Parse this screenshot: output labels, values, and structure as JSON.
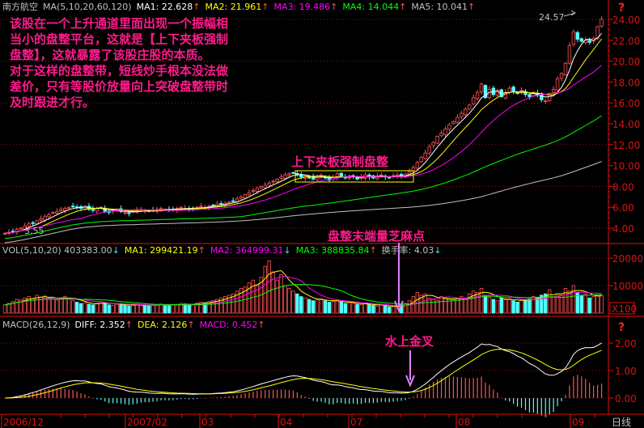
{
  "stock_name": "南方航空",
  "price_header": [
    {
      "label": "MA(5,10,20,60,120)",
      "value": "",
      "color": "#c0c0c0",
      "arrow": ""
    },
    {
      "label": "MA1:",
      "value": "22.628",
      "color": "#ffffff",
      "arrow": "up"
    },
    {
      "label": "MA2:",
      "value": "21.961",
      "color": "#ffff00",
      "arrow": "up"
    },
    {
      "label": "MA3:",
      "value": "19.486",
      "color": "#ff00ff",
      "arrow": "up"
    },
    {
      "label": "MA4:",
      "value": "14.044",
      "color": "#00ff00",
      "arrow": "up"
    },
    {
      "label": "MA5:",
      "value": "10.041",
      "color": "#c0c0c0",
      "arrow": "up"
    }
  ],
  "vol_header": [
    {
      "label": "VOL(5,10,20)",
      "value": "403383.00",
      "color": "#c0c0c0",
      "arrow": "down"
    },
    {
      "label": "MA1:",
      "value": "299421.19",
      "color": "#ffff00",
      "arrow": "up"
    },
    {
      "label": "MA2:",
      "value": "364999.31",
      "color": "#ff00ff",
      "arrow": "down"
    },
    {
      "label": "MA3:",
      "value": "388835.84",
      "color": "#00ff00",
      "arrow": "up"
    },
    {
      "label": "换手率:",
      "value": "4.03",
      "color": "#c0c0c0",
      "arrow": "down"
    }
  ],
  "macd_header": [
    {
      "label": "MACD(26,12,9)",
      "value": "",
      "color": "#c0c0c0",
      "arrow": ""
    },
    {
      "label": "DIFF:",
      "value": "2.352",
      "color": "#ffffff",
      "arrow": "up"
    },
    {
      "label": "DEA:",
      "value": "2.126",
      "color": "#ffff00",
      "arrow": "up"
    },
    {
      "label": "MACD:",
      "value": "0.452",
      "color": "#ff00ff",
      "arrow": "up"
    }
  ],
  "annotation_text": [
    "该股在一个上升通道里面出现一个振幅相",
    "当小的盘整平台，这就是【上下夹板强制",
    "盘整】，这就暴露了该股庄股的本质。",
    "对于这样的盘整带，短线炒手根本没法做",
    "差价，只有等股价放量向上突破盘整带时",
    "及时跟进才行。"
  ],
  "labels": {
    "box": "上下夹板强制盘整",
    "volume_note": "盘整末端量芝麻点",
    "macd_note": "水上金叉",
    "high": "24.57",
    "low": "3.55",
    "vol_unit": "X100",
    "period": "日线",
    "help": "?"
  },
  "colors": {
    "up": "#ff5454",
    "down": "#54ffff",
    "axis": "#e01010",
    "note": "#ff1a8c",
    "box": "#ffff00"
  },
  "chart_data": {
    "type": "candlestick",
    "price_axis": {
      "ticks": [
        "24.00",
        "22.00",
        "20.00",
        "18.00",
        "16.00",
        "14.00",
        "12.00",
        "10.00",
        "8.00",
        "6.00",
        "4.00"
      ],
      "ylim": [
        3.5,
        25
      ]
    },
    "vol_axis": {
      "ticks": [
        "20000",
        "10000",
        "0"
      ]
    },
    "macd_axis": {
      "ticks": [
        "2.00",
        "1.00",
        "0.00"
      ]
    },
    "x_ticks": [
      "2006/12",
      "2007/02",
      "03",
      "04",
      "07",
      "08",
      "09"
    ],
    "ma_periods": [
      5,
      10,
      20,
      60,
      120
    ],
    "close": [
      3.5,
      3.6,
      3.7,
      3.9,
      4.0,
      4.2,
      4.4,
      4.5,
      4.7,
      4.9,
      5.1,
      5.3,
      5.5,
      5.6,
      5.8,
      5.9,
      6.0,
      6.1,
      6.0,
      5.9,
      6.1,
      5.8,
      5.7,
      5.9,
      6.0,
      5.6,
      5.5,
      5.7,
      5.8,
      5.6,
      5.5,
      5.4,
      5.6,
      5.7,
      5.8,
      5.7,
      5.6,
      5.7,
      5.8,
      5.9,
      5.8,
      5.7,
      5.8,
      5.9,
      6.0,
      5.9,
      5.8,
      5.9,
      6.0,
      6.1,
      6.0,
      6.1,
      6.2,
      6.3,
      6.3,
      6.4,
      6.5,
      6.6,
      6.8,
      7.0,
      7.2,
      7.4,
      7.6,
      7.8,
      8.0,
      8.1,
      8.3,
      8.5,
      8.7,
      8.9,
      9.1,
      9.2,
      9.3,
      9.1,
      8.9,
      9.0,
      8.8,
      8.7,
      8.9,
      9.1,
      8.8,
      8.6,
      8.9,
      9.2,
      9.0,
      8.8,
      8.9,
      9.0,
      8.7,
      8.9,
      9.1,
      8.9,
      8.8,
      9.0,
      9.1,
      8.9,
      8.8,
      9.0,
      9.1,
      9.0,
      9.2,
      9.4,
      9.8,
      10.3,
      10.8,
      11.2,
      11.8,
      12.2,
      12.8,
      13.1,
      13.5,
      13.9,
      14.2,
      14.6,
      15.0,
      15.4,
      15.8,
      16.5,
      17.0,
      17.8,
      16.5,
      17.3,
      16.8,
      17.2,
      16.6,
      17.0,
      17.4,
      17.1,
      16.9,
      17.2,
      16.8,
      16.6,
      17.0,
      16.7,
      16.3,
      16.2,
      16.9,
      17.3,
      18.3,
      18.8,
      19.8,
      21.5,
      22.8,
      22.1,
      21.9,
      22.0,
      21.8,
      22.2,
      23.3,
      24.0
    ],
    "volume": [
      3000,
      3500,
      4200,
      5000,
      4800,
      5500,
      6000,
      5200,
      6500,
      5800,
      6200,
      5000,
      5500,
      4800,
      5200,
      6000,
      5500,
      4500,
      4000,
      3500,
      3800,
      3200,
      3000,
      3600,
      4200,
      3800,
      3000,
      2800,
      3200,
      3500,
      3000,
      2600,
      2800,
      3200,
      3000,
      2800,
      2600,
      2900,
      3100,
      3300,
      3000,
      2800,
      3000,
      3200,
      3500,
      3300,
      3000,
      3200,
      3600,
      4000,
      3800,
      4200,
      4500,
      5000,
      5500,
      6000,
      6500,
      7000,
      8000,
      9000,
      9500,
      11000,
      12000,
      10000,
      13000,
      17000,
      19000,
      15000,
      12000,
      14000,
      10000,
      9000,
      8000,
      7000,
      6000,
      5500,
      5000,
      4500,
      4800,
      5200,
      4500,
      4000,
      4200,
      4600,
      4000,
      3500,
      3800,
      3600,
      3200,
      3000,
      3400,
      3200,
      2800,
      2600,
      3000,
      2500,
      2200,
      2400,
      2600,
      3000,
      3500,
      4500,
      6000,
      7500,
      6500,
      7000,
      5500,
      5000,
      4500,
      6000,
      5500,
      5000,
      4800,
      5200,
      6000,
      5500,
      7000,
      8000,
      7500,
      9000,
      6500,
      5800,
      5000,
      4500,
      5500,
      4800,
      5200,
      4500,
      4000,
      4800,
      5000,
      5200,
      6000,
      5500,
      6500,
      7000,
      8500,
      6000,
      7000,
      6500,
      9000,
      8000,
      10000,
      7500,
      6500,
      7000,
      5500,
      6000,
      6200,
      6500
    ]
  }
}
